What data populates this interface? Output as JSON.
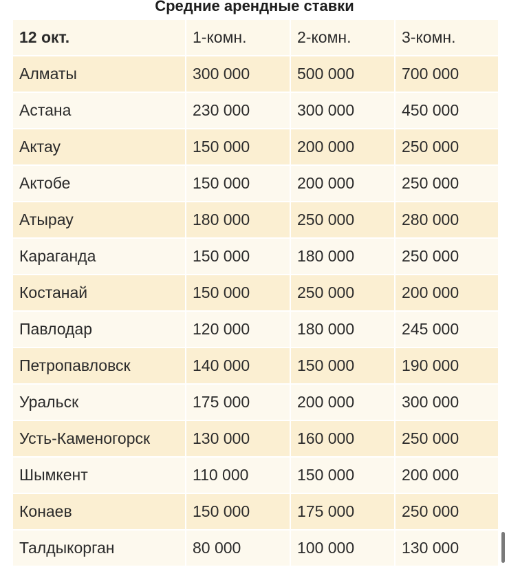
{
  "title": "Средние арендные ставки",
  "header": [
    "12 окт.",
    "1-комн.",
    "2-комн.",
    "3-комн."
  ],
  "rows": [
    [
      "Алматы",
      "300 000",
      "500 000",
      "700 000"
    ],
    [
      "Астана",
      "230 000",
      "300 000",
      "450 000"
    ],
    [
      "Актау",
      "150 000",
      "200 000",
      "250 000"
    ],
    [
      "Актобе",
      "150 000",
      "200 000",
      "250 000"
    ],
    [
      "Атырау",
      "180 000",
      "250 000",
      "280 000"
    ],
    [
      "Караганда",
      "150 000",
      "180 000",
      "250 000"
    ],
    [
      "Костанай",
      "150 000",
      "250 000",
      "200 000"
    ],
    [
      "Павлодар",
      "120 000",
      "180 000",
      "245 000"
    ],
    [
      "Петропавловск",
      "140 000",
      "150 000",
      "190 000"
    ],
    [
      "Уральск",
      "175 000",
      "200 000",
      "300 000"
    ],
    [
      "Усть-Каменогорск",
      "130 000",
      "160 000",
      "250 000"
    ],
    [
      "Шымкент",
      "110 000",
      "150 000",
      "200 000"
    ],
    [
      "Конаев",
      "150 000",
      "175 000",
      "250 000"
    ],
    [
      "Талдыкорган",
      "80 000",
      "100 000",
      "130 000"
    ]
  ],
  "colors": {
    "odd_row": "#fbefd2",
    "even_row": "#fdf9ee",
    "header": "#fdf8ea"
  }
}
